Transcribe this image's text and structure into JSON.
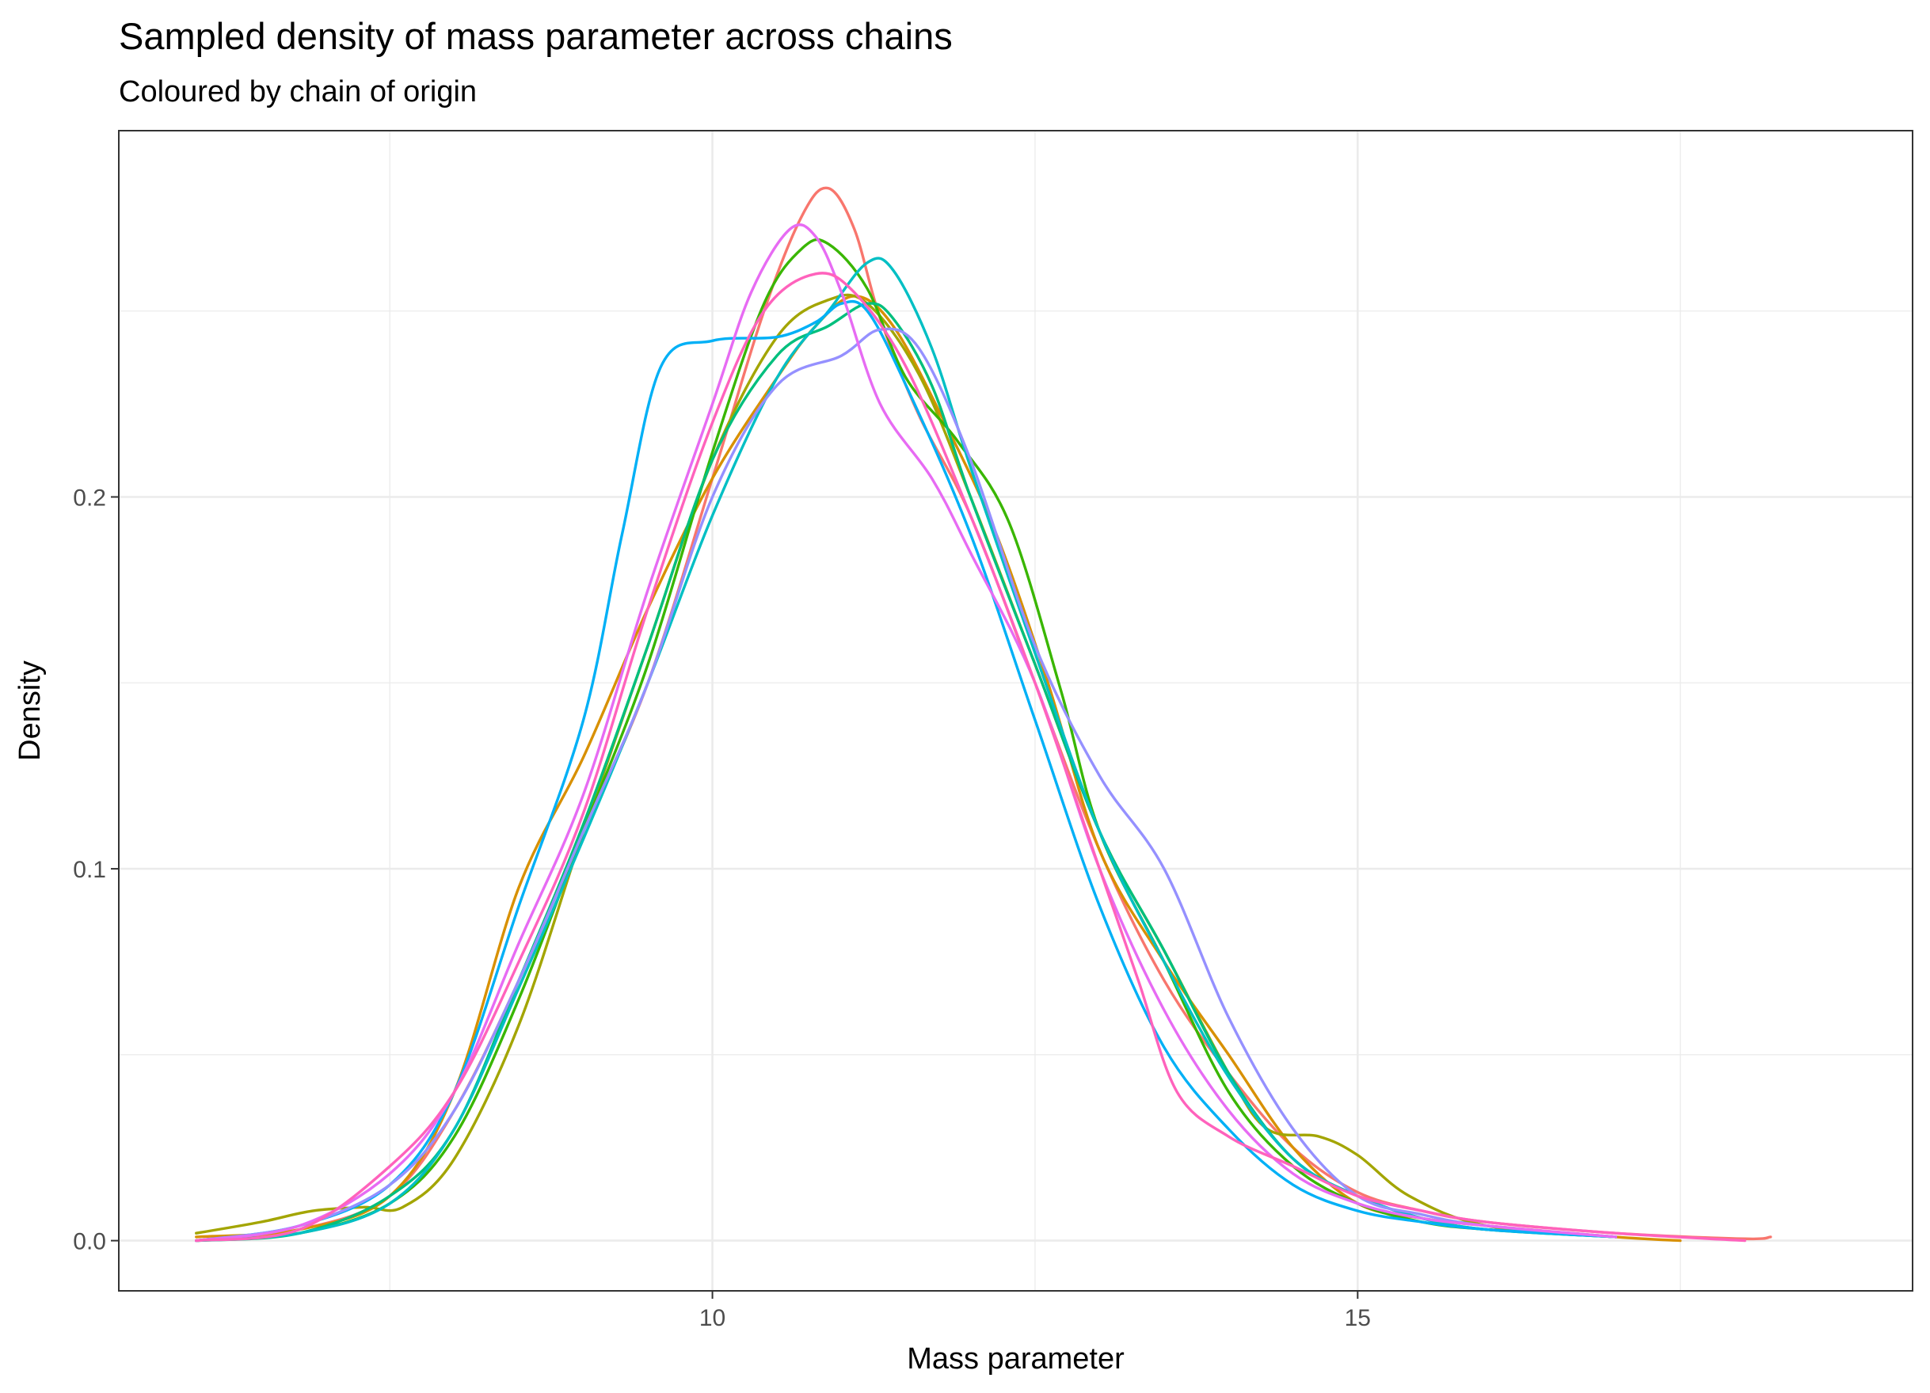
{
  "chart_data": {
    "type": "line",
    "title": "Sampled density of mass parameter across chains",
    "subtitle": "Coloured by chain of origin",
    "xlabel": "Mass parameter",
    "ylabel": "Density",
    "xlim": [
      5.4,
      19.3
    ],
    "ylim": [
      -0.0135,
      0.2985
    ],
    "x_ticks": [
      10,
      15
    ],
    "x_tick_labels": [
      "10",
      "15"
    ],
    "x_minor_ticks": [
      7.5,
      12.5,
      17.5
    ],
    "y_ticks": [
      0.0,
      0.1,
      0.2
    ],
    "y_tick_labels": [
      "0.0",
      "0.1",
      "0.2"
    ],
    "y_minor_ticks": [
      0.05,
      0.15,
      0.25
    ],
    "grid": true,
    "legend": "none",
    "series": [
      {
        "color": "#F8766D",
        "x": [
          6.0,
          6.8,
          7.5,
          8.0,
          8.5,
          9.0,
          9.5,
          10.0,
          10.4,
          10.7,
          10.9,
          11.1,
          11.3,
          11.6,
          12.0,
          12.5,
          13.0,
          13.5,
          14.0,
          14.5,
          15.0,
          15.5,
          16.0,
          17.0,
          18.0,
          18.2
        ],
        "y": [
          0.0,
          0.003,
          0.012,
          0.035,
          0.07,
          0.11,
          0.15,
          0.205,
          0.25,
          0.276,
          0.283,
          0.272,
          0.248,
          0.222,
          0.195,
          0.15,
          0.105,
          0.07,
          0.045,
          0.025,
          0.013,
          0.008,
          0.005,
          0.002,
          0.0005,
          0.001
        ]
      },
      {
        "color": "#D89000",
        "x": [
          6.0,
          6.8,
          7.5,
          8.0,
          8.5,
          9.0,
          9.5,
          10.0,
          10.5,
          10.8,
          11.1,
          11.4,
          11.8,
          12.2,
          12.6,
          13.0,
          13.5,
          14.0,
          14.5,
          15.0,
          15.5,
          16.0,
          17.0,
          17.5
        ],
        "y": [
          0.001,
          0.003,
          0.012,
          0.04,
          0.095,
          0.13,
          0.17,
          0.205,
          0.232,
          0.246,
          0.254,
          0.246,
          0.22,
          0.19,
          0.15,
          0.105,
          0.075,
          0.05,
          0.025,
          0.01,
          0.006,
          0.004,
          0.001,
          0.0
        ]
      },
      {
        "color": "#A3A500",
        "x": [
          6.0,
          6.5,
          6.9,
          7.3,
          7.6,
          8.0,
          8.5,
          9.0,
          9.5,
          10.0,
          10.5,
          10.9,
          11.2,
          11.6,
          12.0,
          12.5,
          13.0,
          13.5,
          14.0,
          14.3,
          14.7,
          15.0,
          15.4,
          16.0,
          17.0
        ],
        "y": [
          0.002,
          0.005,
          0.008,
          0.009,
          0.009,
          0.022,
          0.058,
          0.11,
          0.16,
          0.21,
          0.243,
          0.253,
          0.252,
          0.233,
          0.2,
          0.155,
          0.11,
          0.078,
          0.045,
          0.03,
          0.028,
          0.023,
          0.012,
          0.004,
          0.001
        ]
      },
      {
        "color": "#39B600",
        "x": [
          6.0,
          6.8,
          7.5,
          8.0,
          8.5,
          9.0,
          9.5,
          10.0,
          10.4,
          10.7,
          10.9,
          11.2,
          11.5,
          11.9,
          12.3,
          12.7,
          13.0,
          13.5,
          14.0,
          14.5,
          15.0,
          15.5,
          16.0,
          17.0
        ],
        "y": [
          0.0,
          0.002,
          0.01,
          0.028,
          0.065,
          0.11,
          0.155,
          0.212,
          0.252,
          0.267,
          0.268,
          0.256,
          0.232,
          0.215,
          0.193,
          0.148,
          0.11,
          0.075,
          0.04,
          0.02,
          0.01,
          0.005,
          0.003,
          0.001
        ]
      },
      {
        "color": "#00BF7D",
        "x": [
          6.0,
          6.8,
          7.5,
          8.0,
          8.5,
          9.0,
          9.5,
          10.0,
          10.5,
          10.9,
          11.2,
          11.4,
          11.7,
          12.0,
          12.5,
          13.0,
          13.5,
          14.0,
          14.5,
          15.0,
          15.5,
          16.0,
          17.0
        ],
        "y": [
          0.0,
          0.002,
          0.012,
          0.03,
          0.07,
          0.112,
          0.16,
          0.21,
          0.238,
          0.246,
          0.252,
          0.248,
          0.23,
          0.2,
          0.155,
          0.11,
          0.078,
          0.045,
          0.022,
          0.012,
          0.006,
          0.003,
          0.001
        ]
      },
      {
        "color": "#00BFC4",
        "x": [
          6.0,
          6.8,
          7.5,
          8.0,
          8.5,
          9.0,
          9.5,
          10.0,
          10.5,
          10.9,
          11.2,
          11.4,
          11.7,
          12.0,
          12.5,
          13.0,
          13.5,
          14.0,
          14.5,
          15.0,
          15.5,
          16.0,
          17.0
        ],
        "y": [
          0.0,
          0.002,
          0.01,
          0.03,
          0.068,
          0.108,
          0.15,
          0.195,
          0.232,
          0.25,
          0.263,
          0.261,
          0.24,
          0.208,
          0.158,
          0.11,
          0.075,
          0.044,
          0.022,
          0.012,
          0.006,
          0.003,
          0.001
        ]
      },
      {
        "color": "#00B0F6",
        "x": [
          6.0,
          6.8,
          7.5,
          8.0,
          8.5,
          9.0,
          9.3,
          9.6,
          10.0,
          10.5,
          10.8,
          11.0,
          11.2,
          11.5,
          12.0,
          12.5,
          13.0,
          13.5,
          14.0,
          14.5,
          15.0,
          15.5,
          16.0,
          17.0
        ],
        "y": [
          0.0,
          0.004,
          0.015,
          0.04,
          0.09,
          0.14,
          0.19,
          0.235,
          0.242,
          0.243,
          0.247,
          0.252,
          0.25,
          0.23,
          0.19,
          0.14,
          0.09,
          0.052,
          0.03,
          0.015,
          0.008,
          0.005,
          0.003,
          0.001
        ]
      },
      {
        "color": "#9590FF",
        "x": [
          6.0,
          6.8,
          7.5,
          8.0,
          8.5,
          9.0,
          9.5,
          10.0,
          10.5,
          11.0,
          11.3,
          11.6,
          12.0,
          12.5,
          13.0,
          13.5,
          14.0,
          14.5,
          15.0,
          15.5,
          16.0,
          17.0
        ],
        "y": [
          0.0,
          0.004,
          0.015,
          0.035,
          0.07,
          0.11,
          0.15,
          0.2,
          0.23,
          0.238,
          0.245,
          0.24,
          0.21,
          0.16,
          0.125,
          0.1,
          0.06,
          0.03,
          0.012,
          0.007,
          0.004,
          0.001
        ]
      },
      {
        "color": "#E76BF3",
        "x": [
          6.0,
          6.8,
          7.5,
          8.0,
          8.5,
          9.0,
          9.5,
          10.0,
          10.3,
          10.6,
          10.8,
          11.0,
          11.3,
          11.7,
          12.0,
          12.5,
          13.0,
          13.5,
          14.0,
          14.5,
          15.0,
          15.5,
          16.0,
          17.0
        ],
        "y": [
          0.0,
          0.004,
          0.018,
          0.04,
          0.08,
          0.12,
          0.175,
          0.225,
          0.255,
          0.272,
          0.27,
          0.255,
          0.225,
          0.205,
          0.185,
          0.15,
          0.1,
          0.062,
          0.035,
          0.018,
          0.01,
          0.006,
          0.004,
          0.001
        ]
      },
      {
        "color": "#FF62BC",
        "x": [
          6.0,
          6.8,
          7.5,
          8.0,
          8.5,
          9.0,
          9.5,
          10.0,
          10.4,
          10.8,
          11.1,
          11.5,
          12.0,
          12.5,
          13.0,
          13.3,
          13.6,
          14.0,
          14.5,
          15.0,
          15.5,
          16.0,
          17.0,
          18.0
        ],
        "y": [
          0.0,
          0.003,
          0.02,
          0.04,
          0.075,
          0.115,
          0.17,
          0.22,
          0.25,
          0.26,
          0.255,
          0.235,
          0.195,
          0.15,
          0.1,
          0.07,
          0.04,
          0.028,
          0.02,
          0.012,
          0.008,
          0.005,
          0.002,
          0.0
        ]
      }
    ]
  }
}
